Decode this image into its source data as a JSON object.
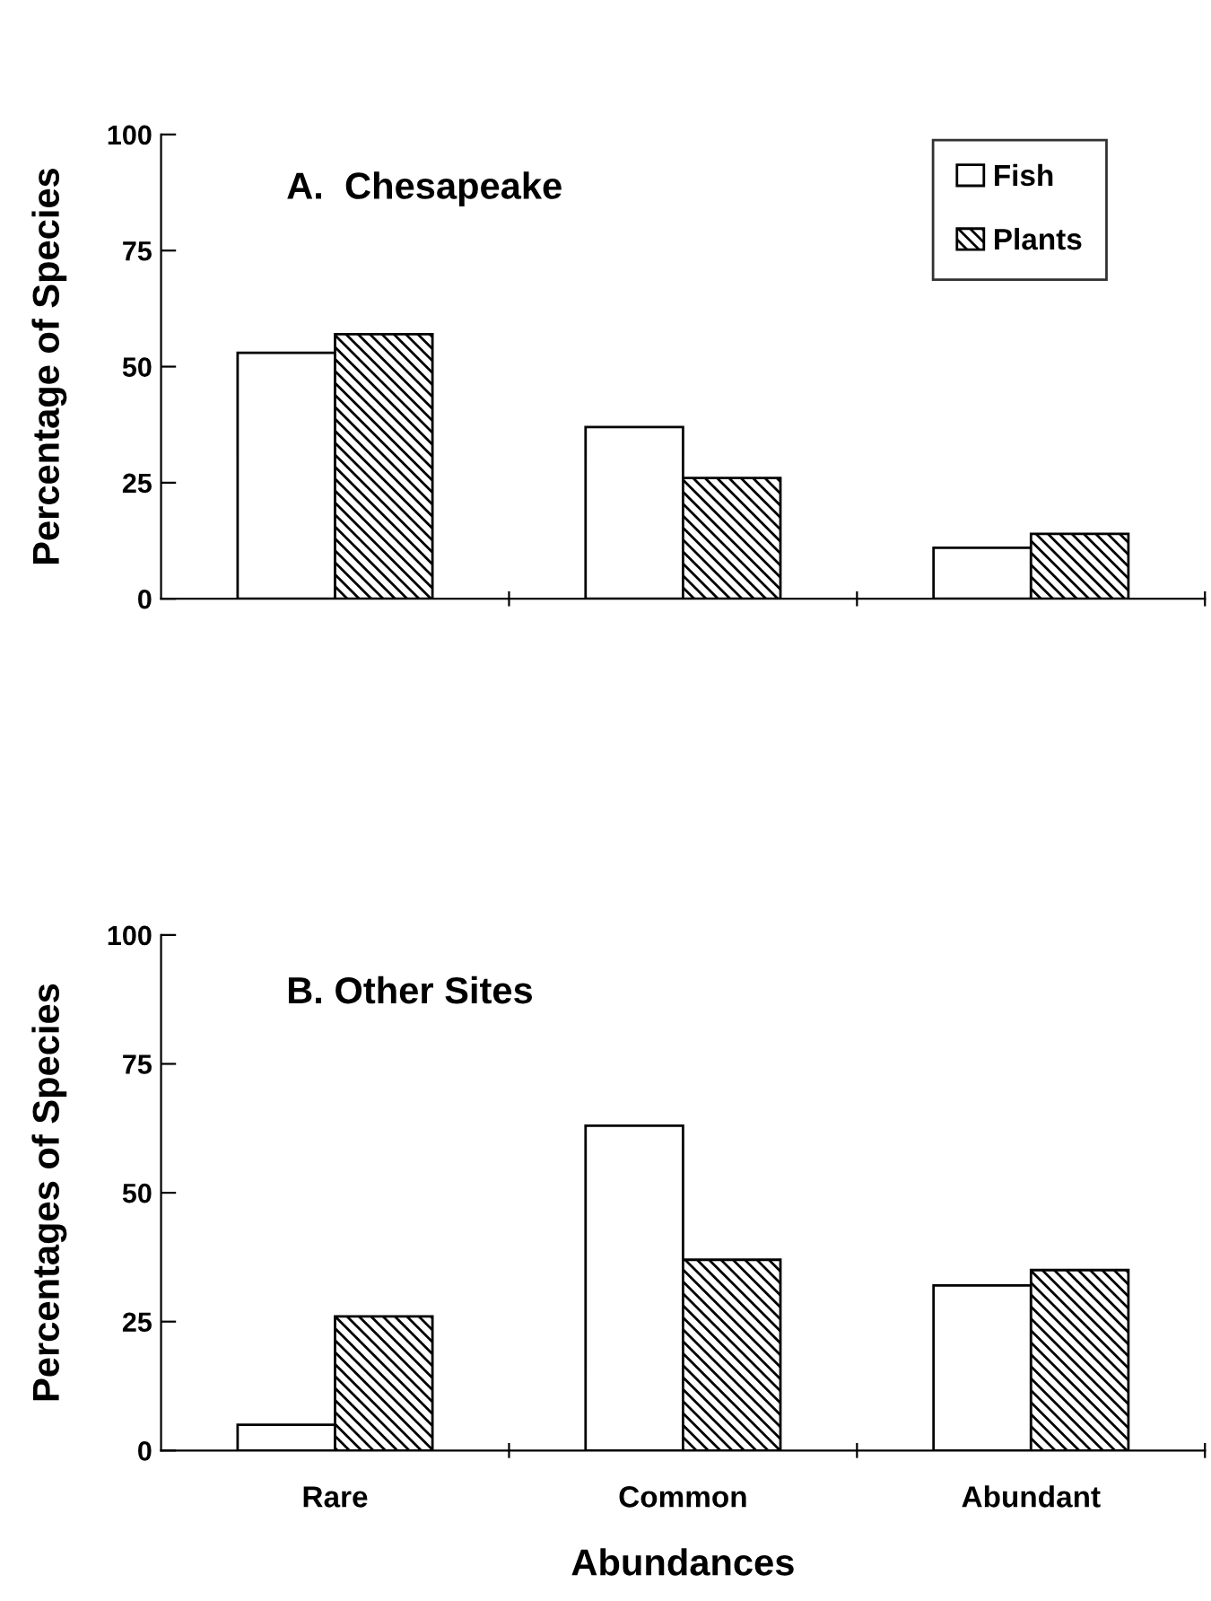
{
  "chart_data": [
    {
      "type": "bar",
      "title": "A.  Chesapeake",
      "ylabel": "Percentage of Species",
      "categories": [
        null,
        null,
        null
      ],
      "series": [
        {
          "name": "Fish",
          "color": "#ffffff",
          "values": [
            53,
            37,
            11
          ]
        },
        {
          "name": "Plants",
          "color": "#000000",
          "values": [
            57,
            26,
            14
          ]
        }
      ],
      "ylim": [
        0,
        100
      ],
      "yticks": [
        0,
        25,
        50,
        75,
        100
      ],
      "grid": false,
      "legend": "top right",
      "tick_labels": "y"
    },
    {
      "type": "bar",
      "title": "B. Other Sites",
      "ylabel": "Percentages of Species",
      "xlabel": "Abundances",
      "categories": [
        "Rare",
        "Common",
        "Abundant"
      ],
      "series": [
        {
          "color": "#ffffff",
          "values": [
            5,
            63,
            32
          ]
        },
        {
          "color": "#000000",
          "values": [
            26,
            37,
            35
          ]
        }
      ],
      "ylim": [
        0,
        100
      ],
      "yticks": [
        0,
        25,
        50,
        75,
        100
      ],
      "grid": false,
      "legend": false
    }
  ]
}
